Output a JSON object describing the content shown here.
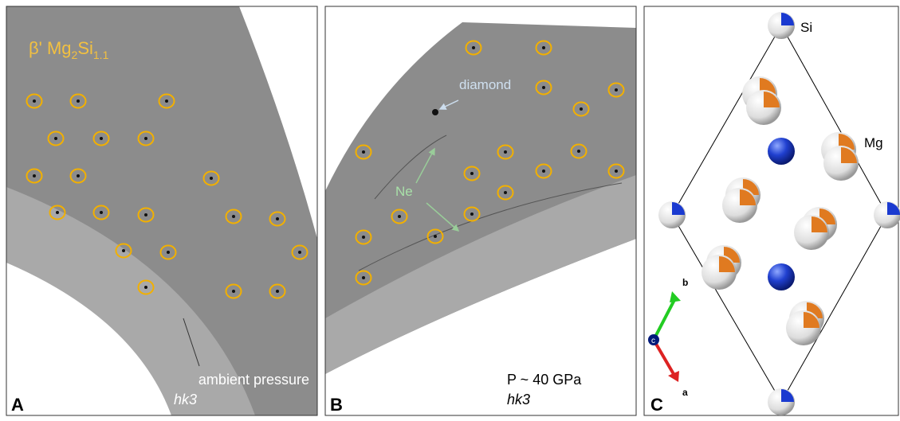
{
  "panel_a": {
    "letter": "A",
    "formula": {
      "prefix": "β' Mg",
      "sub1": "2",
      "mid": "Si",
      "sub2": "1.1"
    },
    "pressure": "ambient pressure",
    "plane": "hk3"
  },
  "panel_b": {
    "letter": "B",
    "diamond": "diamond",
    "neon": "Ne",
    "pressure": "P ~ 40 GPa",
    "plane": "hk3"
  },
  "panel_c": {
    "letter": "C",
    "si": "Si",
    "mg": "Mg",
    "axis_b": "b",
    "axis_a": "a",
    "axis_c": "c"
  }
}
